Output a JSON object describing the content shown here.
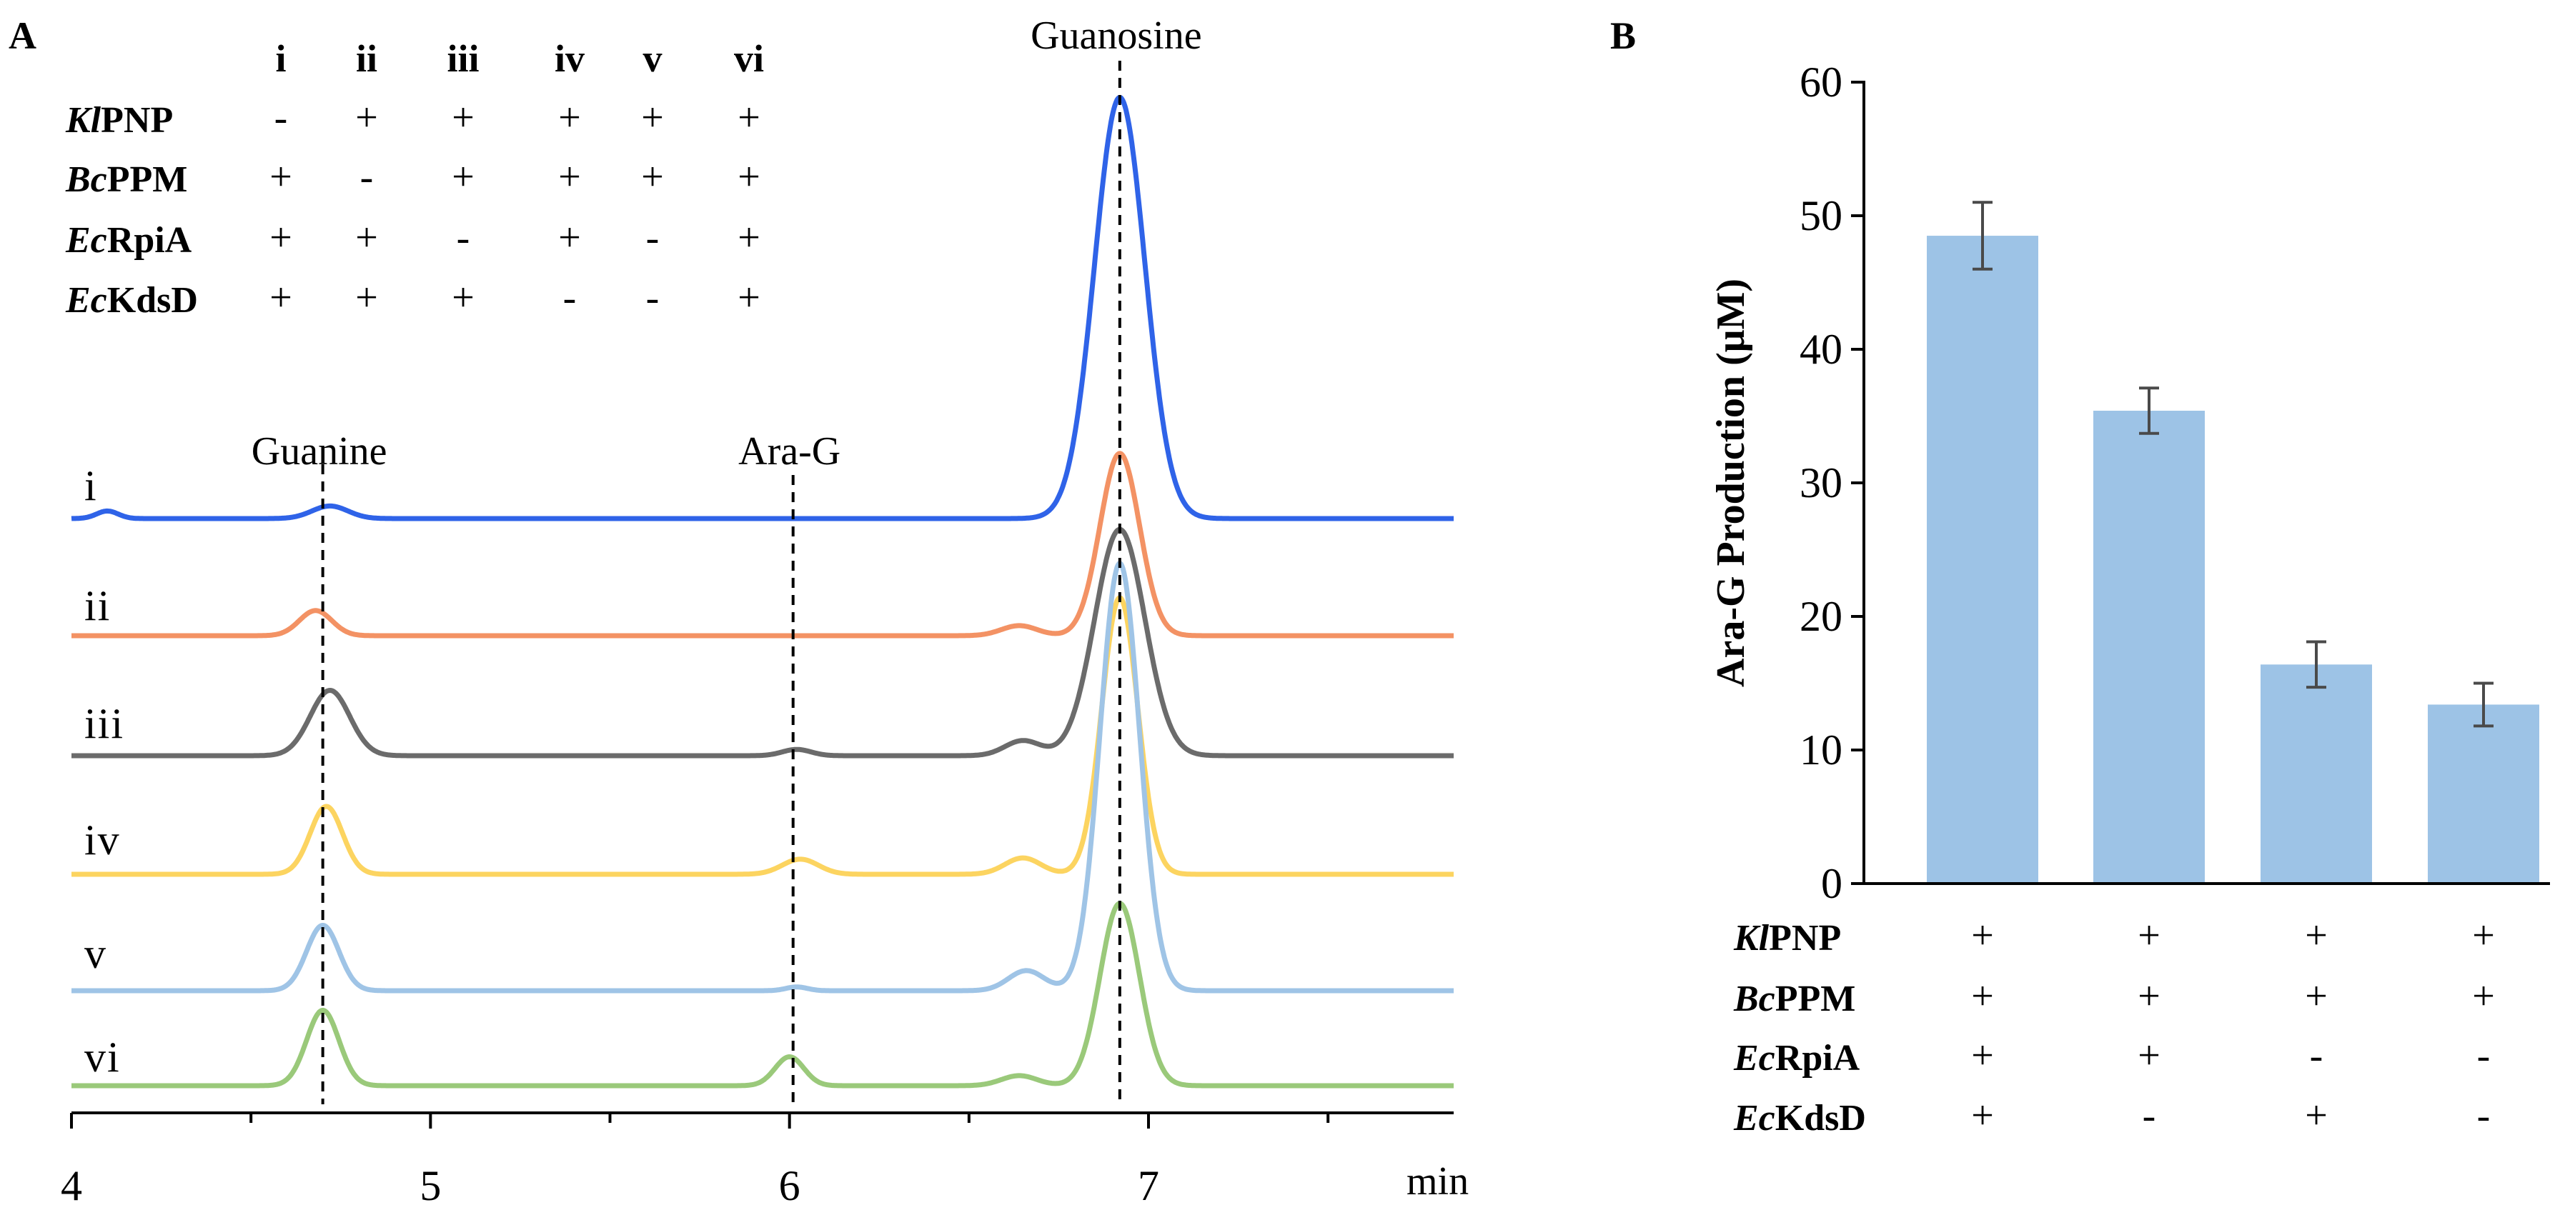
{
  "chart_data": [
    {
      "type": "line",
      "panel_label": "A",
      "title": "",
      "xlabel": "min",
      "ylabel": "",
      "xlim": [
        4,
        7.85
      ],
      "x_ticks": [
        4,
        5,
        6,
        7
      ],
      "x_tick_labels": [
        "4",
        "5",
        "6",
        "7"
      ],
      "grid": false,
      "design_table": {
        "columns": [
          "i",
          "ii",
          "iii",
          "iv",
          "v",
          "vi"
        ],
        "rows": [
          {
            "italic": "Kl",
            "rest": "PNP",
            "values": [
              "-",
              "+",
              "+",
              "+",
              "+",
              "+"
            ]
          },
          {
            "italic": "Bc",
            "rest": "PPM",
            "values": [
              "+",
              "-",
              "+",
              "+",
              "+",
              "+"
            ]
          },
          {
            "italic": "Ec",
            "rest": "RpiA",
            "values": [
              "+",
              "+",
              "-",
              "+",
              "-",
              "+"
            ]
          },
          {
            "italic": "Ec",
            "rest": "KdsD",
            "values": [
              "+",
              "+",
              "+",
              "-",
              "-",
              "+"
            ]
          }
        ]
      },
      "peak_markers": [
        {
          "label": "Guanine",
          "x": 4.7
        },
        {
          "label": "Ara-G",
          "x": 6.01
        },
        {
          "label": "Guanosine",
          "x": 6.92
        }
      ],
      "series": [
        {
          "name": "i",
          "color": "#2f63e8",
          "peaks": [
            {
              "x": 4.1,
              "h": 0.06,
              "w": 0.03
            },
            {
              "x": 4.72,
              "h": 0.1,
              "w": 0.05
            },
            {
              "x": 6.92,
              "h": 3.35,
              "w": 0.07
            }
          ]
        },
        {
          "name": "ii",
          "color": "#f39264",
          "peaks": [
            {
              "x": 4.68,
              "h": 0.2,
              "w": 0.045
            },
            {
              "x": 6.64,
              "h": 0.08,
              "w": 0.05
            },
            {
              "x": 6.92,
              "h": 1.45,
              "w": 0.055
            }
          ]
        },
        {
          "name": "iii",
          "color": "#6b6b6b",
          "peaks": [
            {
              "x": 4.72,
              "h": 0.52,
              "w": 0.055
            },
            {
              "x": 6.02,
              "h": 0.05,
              "w": 0.04
            },
            {
              "x": 6.65,
              "h": 0.12,
              "w": 0.05
            },
            {
              "x": 6.92,
              "h": 1.8,
              "w": 0.07
            }
          ]
        },
        {
          "name": "iv",
          "color": "#fcd460",
          "peaks": [
            {
              "x": 4.71,
              "h": 0.54,
              "w": 0.045
            },
            {
              "x": 6.03,
              "h": 0.12,
              "w": 0.05
            },
            {
              "x": 6.65,
              "h": 0.13,
              "w": 0.05
            },
            {
              "x": 6.92,
              "h": 2.2,
              "w": 0.05
            }
          ]
        },
        {
          "name": "v",
          "color": "#9fc4e6",
          "peaks": [
            {
              "x": 4.7,
              "h": 0.52,
              "w": 0.045
            },
            {
              "x": 6.02,
              "h": 0.03,
              "w": 0.03
            },
            {
              "x": 6.66,
              "h": 0.16,
              "w": 0.05
            },
            {
              "x": 6.92,
              "h": 3.4,
              "w": 0.055
            }
          ]
        },
        {
          "name": "vi",
          "color": "#9ac97a",
          "peaks": [
            {
              "x": 4.7,
              "h": 0.6,
              "w": 0.045
            },
            {
              "x": 6.0,
              "h": 0.23,
              "w": 0.04
            },
            {
              "x": 6.64,
              "h": 0.08,
              "w": 0.05
            },
            {
              "x": 6.92,
              "h": 1.45,
              "w": 0.055
            }
          ]
        }
      ]
    },
    {
      "type": "bar",
      "panel_label": "B",
      "title": "",
      "xlabel": "",
      "ylabel": "Ara-G Production (μM)",
      "ylim": [
        0,
        60
      ],
      "y_ticks": [
        0,
        10,
        20,
        30,
        40,
        50,
        60
      ],
      "y_tick_labels": [
        "0",
        "10",
        "20",
        "30",
        "40",
        "50",
        "60"
      ],
      "grid": false,
      "bar_color": "#9dc3e6",
      "values": [
        48.5,
        35.4,
        16.4,
        13.4
      ],
      "errors": [
        2.5,
        1.7,
        1.7,
        1.6
      ],
      "design_table": {
        "rows": [
          {
            "italic": "Kl",
            "rest": "PNP",
            "values": [
              "+",
              "+",
              "+",
              "+"
            ]
          },
          {
            "italic": "Bc",
            "rest": "PPM",
            "values": [
              "+",
              "+",
              "+",
              "+"
            ]
          },
          {
            "italic": "Ec",
            "rest": "RpiA",
            "values": [
              "+",
              "+",
              "-",
              "-"
            ]
          },
          {
            "italic": "Ec",
            "rest": "KdsD",
            "values": [
              "+",
              "-",
              "+",
              "-"
            ]
          }
        ]
      }
    }
  ]
}
